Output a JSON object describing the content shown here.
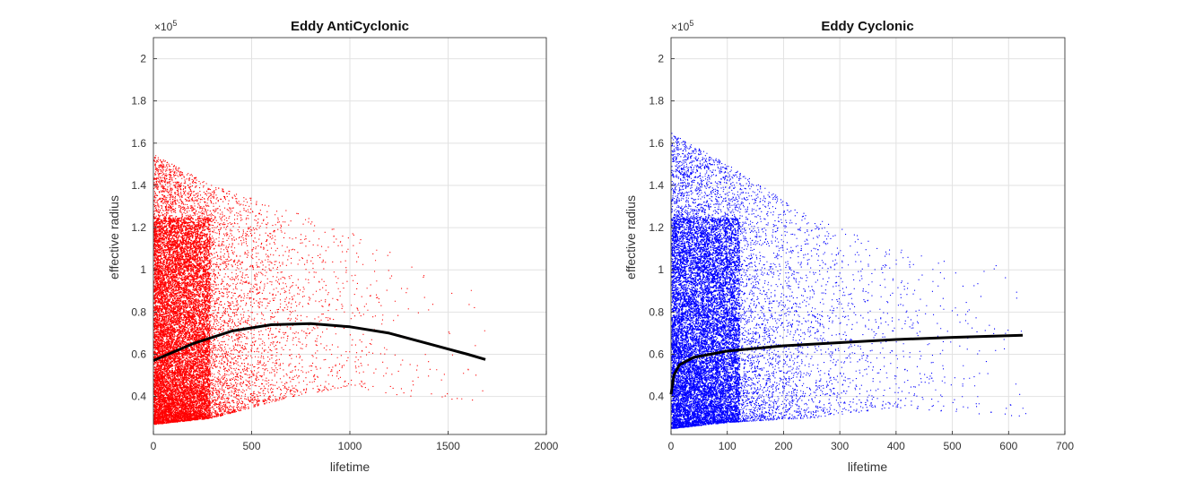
{
  "chart_data": [
    {
      "type": "scatter",
      "title": "Eddy AntiCyclonic",
      "xlabel": "lifetime",
      "ylabel": "effective_radius",
      "ylabel_display": "effective radius",
      "y_exponent_label": "×10",
      "y_exponent_power": "5",
      "xlim": [
        0,
        2000
      ],
      "ylim": [
        0.22,
        2.1
      ],
      "x_ticks": [
        0,
        500,
        1000,
        1500,
        2000
      ],
      "y_ticks": [
        0.4,
        0.6,
        0.8,
        1,
        1.2,
        1.4,
        1.6,
        1.8,
        2
      ],
      "x_tick_labels": [
        "0",
        "500",
        "1000",
        "1500",
        "2000"
      ],
      "y_tick_labels": [
        "0.4",
        "0.6",
        "0.8",
        "1",
        "1.2",
        "1.4",
        "1.6",
        "1.8",
        "2"
      ],
      "grid": true,
      "point_color": "#ff0000",
      "fit_color": "#000000",
      "series": [
        {
          "kind": "points",
          "xmax": 1690,
          "density_decay": 260,
          "band": [
            [
              0,
              0.27,
              1.55
            ],
            [
              300,
              0.3,
              1.4
            ],
            [
              700,
              0.4,
              1.28
            ],
            [
              1000,
              0.45,
              1.18
            ],
            [
              1300,
              0.4,
              1.05
            ],
            [
              1700,
              0.38,
              0.9
            ]
          ]
        },
        {
          "kind": "fit",
          "points": [
            [
              0,
              0.57
            ],
            [
              200,
              0.65
            ],
            [
              400,
              0.71
            ],
            [
              600,
              0.74
            ],
            [
              800,
              0.745
            ],
            [
              1000,
              0.73
            ],
            [
              1200,
              0.7
            ],
            [
              1400,
              0.65
            ],
            [
              1600,
              0.6
            ],
            [
              1690,
              0.575
            ]
          ]
        }
      ]
    },
    {
      "type": "scatter",
      "title": "Eddy Cyclonic",
      "xlabel": "lifetime",
      "ylabel": "effective_radius",
      "ylabel_display": "effective radius",
      "y_exponent_label": "×10",
      "y_exponent_power": "5",
      "xlim": [
        0,
        700
      ],
      "ylim": [
        0.22,
        2.1
      ],
      "x_ticks": [
        0,
        100,
        200,
        300,
        400,
        500,
        600,
        700
      ],
      "y_ticks": [
        0.4,
        0.6,
        0.8,
        1,
        1.2,
        1.4,
        1.6,
        1.8,
        2
      ],
      "x_tick_labels": [
        "0",
        "100",
        "200",
        "300",
        "400",
        "500",
        "600",
        "700"
      ],
      "y_tick_labels": [
        "0.4",
        "0.6",
        "0.8",
        "1",
        "1.2",
        "1.4",
        "1.6",
        "1.8",
        "2"
      ],
      "grid": true,
      "point_color": "#0000ff",
      "fit_color": "#000000",
      "series": [
        {
          "kind": "points",
          "xmax": 630,
          "density_decay": 110,
          "band": [
            [
              0,
              0.25,
              1.65
            ],
            [
              100,
              0.28,
              1.5
            ],
            [
              250,
              0.3,
              1.25
            ],
            [
              400,
              0.35,
              1.1
            ],
            [
              630,
              0.3,
              1.0
            ]
          ]
        },
        {
          "kind": "fit",
          "points": [
            [
              0,
              0.41
            ],
            [
              5,
              0.5
            ],
            [
              15,
              0.55
            ],
            [
              40,
              0.585
            ],
            [
              100,
              0.615
            ],
            [
              200,
              0.64
            ],
            [
              300,
              0.655
            ],
            [
              400,
              0.67
            ],
            [
              500,
              0.68
            ],
            [
              625,
              0.69
            ]
          ]
        }
      ]
    }
  ]
}
